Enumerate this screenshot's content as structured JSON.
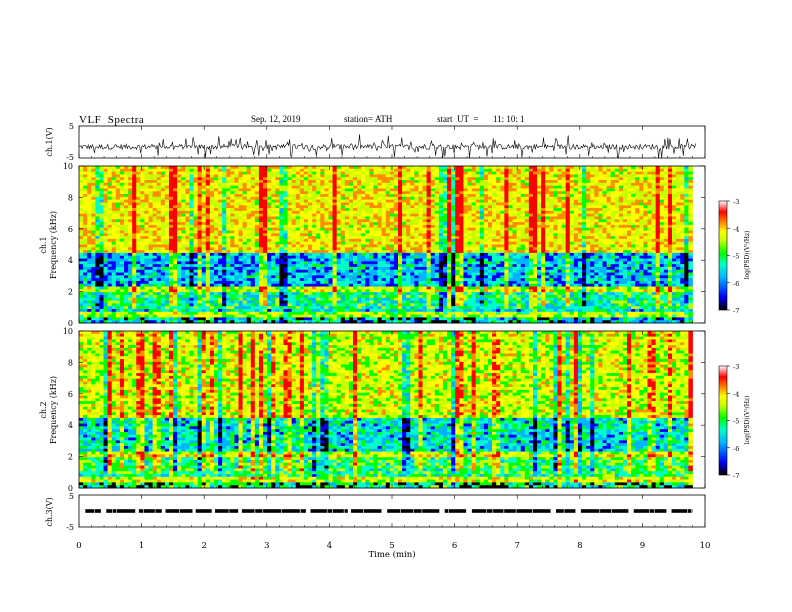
{
  "header": {
    "title": "VLF  Spectra",
    "date": "Sep. 12, 2019",
    "station": "station= ATH",
    "start_label": "start  UT  =",
    "start_ut": "11: 10: 1"
  },
  "chart_data": [
    {
      "type": "line",
      "name": "channel-1-waveform",
      "ylabel": "ch.1(V)",
      "yticks": [
        "5",
        "-5"
      ],
      "ylim": [
        -5,
        5
      ],
      "xlim": [
        0,
        10
      ],
      "baseline": -1.5,
      "trace_color": "#000000"
    },
    {
      "type": "heatmap",
      "name": "channel-1-spectrogram",
      "ylabel_lines": [
        "ch.1",
        "Frequency  (kHz)"
      ],
      "yticks": [
        "0",
        "2",
        "4",
        "6",
        "8",
        "10"
      ],
      "ylim": [
        0,
        10
      ],
      "xlim": [
        0,
        9.8
      ],
      "band_structure": {
        "low_band_khz": [
          0,
          0.9
        ],
        "mid_band_khz": [
          0.9,
          2.3
        ],
        "blue_band_khz": [
          2.3,
          4.5
        ],
        "high_band_khz": [
          4.5,
          10
        ]
      },
      "typical_level": {
        "low": -5.6,
        "mid": -5.3,
        "blue": -5.8,
        "high": -4.2
      },
      "colorbar": {
        "label": "log(PSD)(V²/Hz)",
        "ticks": [
          "-3",
          "-4",
          "-5",
          "-6",
          "-7"
        ],
        "range": [
          -7,
          -3
        ]
      }
    },
    {
      "type": "heatmap",
      "name": "channel-2-spectrogram",
      "ylabel_lines": [
        "ch.2",
        "Frequency  (kHz)"
      ],
      "yticks": [
        "0",
        "2",
        "4",
        "6",
        "8",
        "10"
      ],
      "ylim": [
        0,
        10
      ],
      "xlim": [
        0,
        9.8
      ],
      "band_structure": {
        "low_band_khz": [
          0,
          0.9
        ],
        "mid_band_khz": [
          0.9,
          2.2
        ],
        "blue_band_khz": [
          2.2,
          4.5
        ],
        "high_band_khz": [
          4.5,
          10
        ]
      },
      "typical_level": {
        "low": -5.3,
        "mid": -5.1,
        "blue": -5.6,
        "high": -4.4
      },
      "colorbar": {
        "label": "log(PSD)(V²/Hz)",
        "ticks": [
          "-3",
          "-4",
          "-5",
          "-6",
          "-7"
        ],
        "range": [
          -7,
          -3
        ]
      }
    },
    {
      "type": "line",
      "name": "channel-3-signal",
      "ylabel": "ch.3(V)",
      "yticks": [
        "5",
        "-5"
      ],
      "ylim": [
        -5,
        5
      ],
      "xlim": [
        0,
        10
      ],
      "level": 0,
      "trace_color": "#000000"
    }
  ],
  "x_axis": {
    "label": "Time  (min)",
    "ticks": [
      "0",
      "1",
      "2",
      "3",
      "4",
      "5",
      "6",
      "7",
      "8",
      "9",
      "10"
    ],
    "range": [
      0,
      10
    ]
  },
  "colors": {
    "colormap": [
      "#000000",
      "#0000ff",
      "#00b4ff",
      "#00ffc8",
      "#00ff00",
      "#c8ff00",
      "#ffff00",
      "#ff8c00",
      "#ff0000",
      "#ffffff"
    ]
  }
}
